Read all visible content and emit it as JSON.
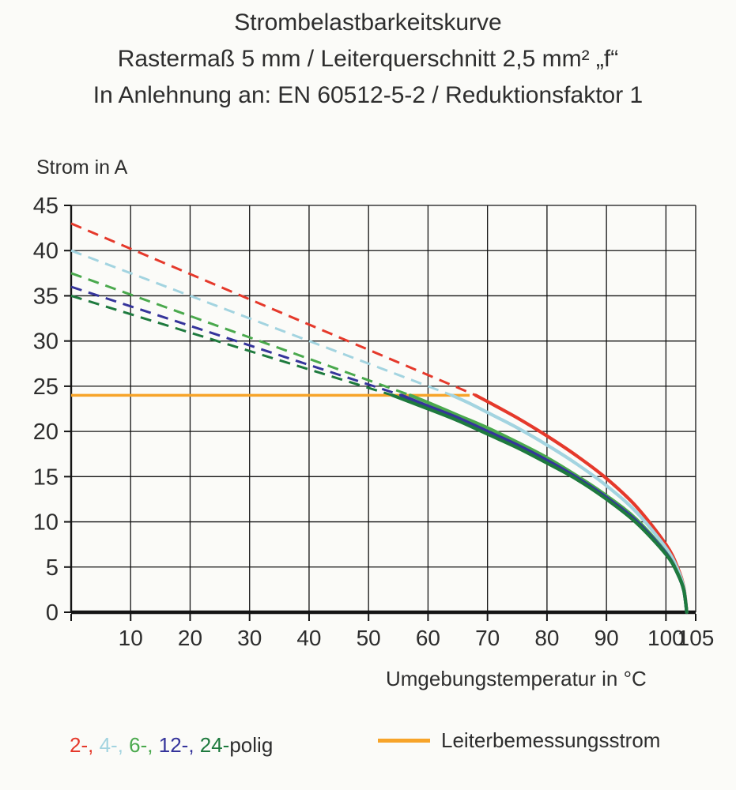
{
  "header": {
    "title": "Strombelastbarkeitskurve",
    "subtitle": "Rastermaß 5 mm / Leiterquerschnitt 2,5 mm² „f“",
    "subtitle2": "In Anlehnung an: EN 60512-5-2 / Reduktionsfaktor 1"
  },
  "chart_data": {
    "type": "line",
    "title": "Strombelastbarkeitskurve",
    "ylabel": "Strom in A",
    "xlabel": "Umgebungstemperatur in °C",
    "unit": "A",
    "xlim": [
      0,
      105
    ],
    "ylim": [
      0,
      45
    ],
    "x_ticks": [
      10,
      20,
      30,
      40,
      50,
      60,
      70,
      80,
      90,
      100,
      105
    ],
    "y_ticks": [
      0,
      5,
      10,
      15,
      20,
      25,
      30,
      35,
      40,
      45
    ],
    "grid": true,
    "grid_color": "#141414",
    "legend_position": "bottom",
    "rated_current_line": {
      "label": "Leiterbemessungsstrom",
      "value": 24,
      "color": "#f7a429",
      "x_start": 0,
      "x_end": 67
    },
    "series": [
      {
        "name": "2-polig",
        "color": "#e5392b",
        "dashed": [
          [
            0,
            43
          ],
          [
            68,
            24
          ]
        ],
        "solid": [
          [
            68,
            24
          ],
          [
            70,
            23.3
          ],
          [
            75,
            21.5
          ],
          [
            80,
            19.5
          ],
          [
            85,
            17.3
          ],
          [
            90,
            14.8
          ],
          [
            95,
            11.7
          ],
          [
            100,
            7.5
          ],
          [
            102,
            4.9
          ],
          [
            103,
            2.8
          ],
          [
            103.5,
            0
          ]
        ]
      },
      {
        "name": "4-polig",
        "color": "#a3d4e0",
        "dashed": [
          [
            0,
            40
          ],
          [
            64,
            24
          ]
        ],
        "solid": [
          [
            64,
            24
          ],
          [
            67,
            23.1
          ],
          [
            70,
            22.1
          ],
          [
            75,
            20.4
          ],
          [
            80,
            18.5
          ],
          [
            85,
            16.4
          ],
          [
            90,
            14.0
          ],
          [
            95,
            11.1
          ],
          [
            100,
            7.1
          ],
          [
            102,
            4.7
          ],
          [
            103,
            2.7
          ],
          [
            103.5,
            0
          ]
        ]
      },
      {
        "name": "6-polig",
        "color": "#4aa94d",
        "dashed": [
          [
            0,
            37.5
          ],
          [
            57,
            24
          ]
        ],
        "solid": [
          [
            57,
            24
          ],
          [
            60,
            23.2
          ],
          [
            65,
            21.8
          ],
          [
            70,
            20.4
          ],
          [
            75,
            18.8
          ],
          [
            80,
            17.1
          ],
          [
            85,
            15.1
          ],
          [
            90,
            12.9
          ],
          [
            95,
            10.3
          ],
          [
            100,
            6.6
          ],
          [
            102,
            4.3
          ],
          [
            103,
            2.5
          ],
          [
            103.5,
            0
          ]
        ]
      },
      {
        "name": "12-polig",
        "color": "#35349b",
        "dashed": [
          [
            0,
            36
          ],
          [
            55.5,
            24
          ]
        ],
        "solid": [
          [
            55.5,
            24
          ],
          [
            60,
            22.8
          ],
          [
            65,
            21.5
          ],
          [
            70,
            20.0
          ],
          [
            75,
            18.5
          ],
          [
            80,
            16.8
          ],
          [
            85,
            14.9
          ],
          [
            90,
            12.7
          ],
          [
            95,
            10.1
          ],
          [
            100,
            6.5
          ],
          [
            102,
            4.2
          ],
          [
            103,
            2.4
          ],
          [
            103.5,
            0
          ]
        ]
      },
      {
        "name": "24-polig",
        "color": "#1e7a3e",
        "dashed": [
          [
            0,
            35
          ],
          [
            54,
            24
          ]
        ],
        "solid": [
          [
            54,
            24
          ],
          [
            60,
            22.5
          ],
          [
            65,
            21.2
          ],
          [
            70,
            19.7
          ],
          [
            75,
            18.2
          ],
          [
            80,
            16.5
          ],
          [
            85,
            14.7
          ],
          [
            90,
            12.5
          ],
          [
            95,
            9.9
          ],
          [
            100,
            6.4
          ],
          [
            102,
            4.2
          ],
          [
            103,
            2.4
          ],
          [
            103.5,
            0
          ]
        ]
      }
    ]
  },
  "legend": {
    "pole_tokens": [
      {
        "text": "2-, ",
        "color": "#e5392b"
      },
      {
        "text": "4-, ",
        "color": "#a3d4e0"
      },
      {
        "text": "6-, ",
        "color": "#4aa94d"
      },
      {
        "text": "12-, ",
        "color": "#35349b"
      },
      {
        "text": "24-",
        "color": "#1e7a3e"
      },
      {
        "text": "polig",
        "color": "#2d2d2d"
      }
    ],
    "rated_label": "Leiterbemessungsstrom"
  }
}
